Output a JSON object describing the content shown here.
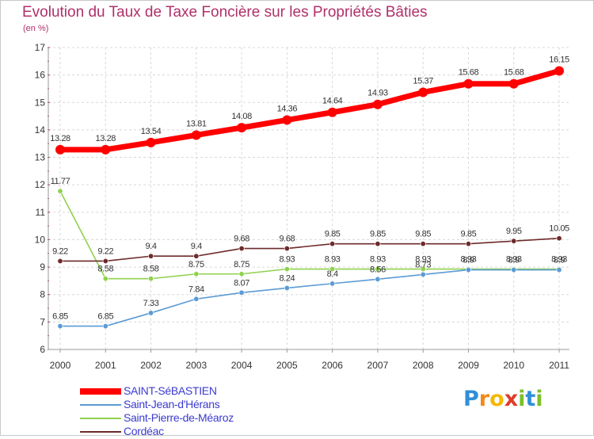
{
  "title": "Evolution du Taux de Taxe Foncière sur les Propriétés Bâties",
  "subtitle": "(en %)",
  "logo": {
    "letters": [
      "P",
      "r",
      "o",
      "x",
      "i",
      "t",
      "i"
    ],
    "colors": [
      "#2f8fd8",
      "#f08a1c",
      "#f5b800",
      "#e03c2a",
      "#7cbf2a",
      "#2f8fd8",
      "#7cbf2a"
    ]
  },
  "chart_data": {
    "type": "line",
    "title": "Evolution du Taux de Taxe Foncière sur les Propriétés Bâties",
    "ylabel": "(en %)",
    "xlabel": "",
    "x": [
      "2000",
      "2001",
      "2002",
      "2003",
      "2004",
      "2005",
      "2006",
      "2007",
      "2008",
      "2009",
      "2010",
      "2011"
    ],
    "ylim": [
      6,
      17
    ],
    "yticks": [
      "6",
      "7",
      "8",
      "9",
      "10",
      "11",
      "12",
      "13",
      "14",
      "15",
      "16",
      "17"
    ],
    "series": [
      {
        "name": "SAINT-SéBASTIEN",
        "color": "#ff0000",
        "values": [
          13.28,
          13.28,
          13.54,
          13.81,
          14.08,
          14.36,
          14.64,
          14.93,
          15.37,
          15.68,
          15.68,
          16.15
        ],
        "labels": [
          "13.28",
          "13.28",
          "13.54",
          "13.81",
          "14.08",
          "14.36",
          "14.64",
          "14.93",
          "15.37",
          "15.68",
          "15.68",
          "16.15"
        ]
      },
      {
        "name": "Saint-Jean-d'Hérans",
        "color": "#5b9bd5",
        "values": [
          6.85,
          6.85,
          7.33,
          7.84,
          8.07,
          8.24,
          8.4,
          8.56,
          8.73,
          8.9,
          8.9,
          8.9
        ],
        "labels": [
          "6.85",
          "6.85",
          "7.33",
          "7.84",
          "8.07",
          "8.24",
          "8.4",
          "8.56",
          "8.73",
          "8.9",
          "8.9",
          "8.9"
        ]
      },
      {
        "name": "Saint-Pierre-de-Méaroz",
        "color": "#8fd14f",
        "values": [
          11.77,
          8.58,
          8.58,
          8.75,
          8.75,
          8.93,
          8.93,
          8.93,
          8.93,
          8.93,
          8.93,
          8.93
        ],
        "labels": [
          "11.77",
          "8.58",
          "8.58",
          "8.75",
          "8.75",
          "8.93",
          "8.93",
          "8.93",
          "8.93",
          "8.93",
          "8.93",
          "8.93"
        ]
      },
      {
        "name": "Cordéac",
        "color": "#6e2a2a",
        "values": [
          9.22,
          9.22,
          9.4,
          9.4,
          9.68,
          9.68,
          9.85,
          9.85,
          9.85,
          9.85,
          9.95,
          10.05
        ],
        "labels": [
          "9.22",
          "9.22",
          "9.4",
          "9.4",
          "9.68",
          "9.68",
          "9.85",
          "9.85",
          "9.85",
          "9.85",
          "9.95",
          "10.05"
        ]
      }
    ],
    "legend_position": "bottom-left"
  }
}
